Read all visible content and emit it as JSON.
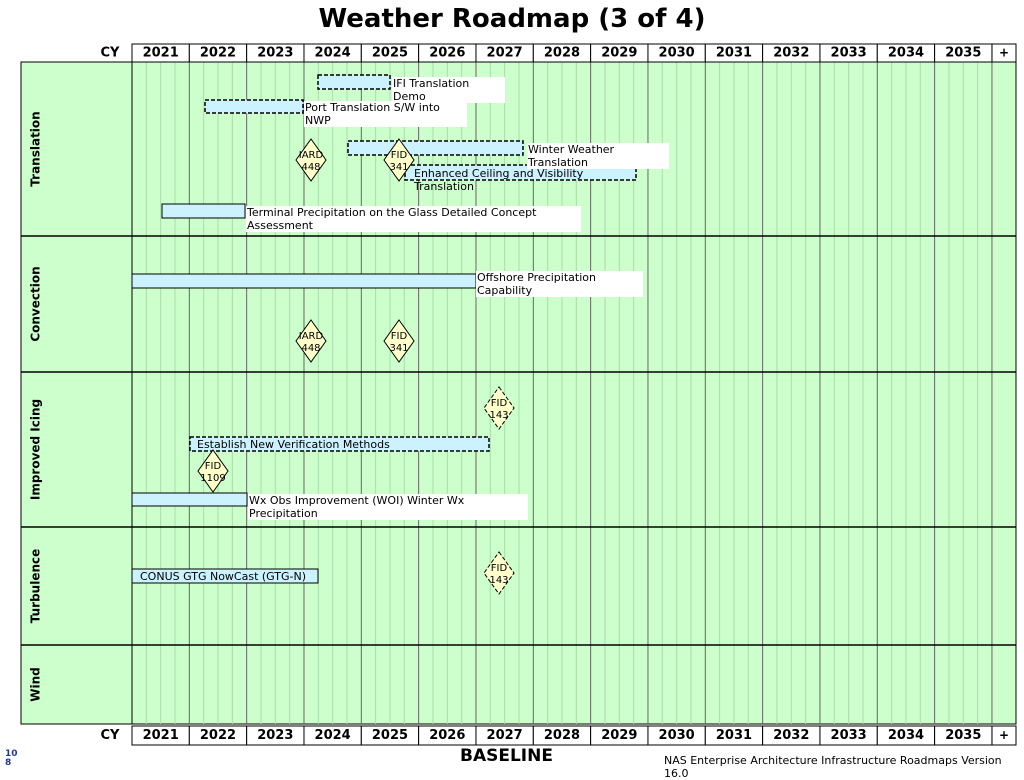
{
  "title": "Weather Roadmap (3 of 4)",
  "header": {
    "label": "CY",
    "years": [
      "2021",
      "2022",
      "2023",
      "2024",
      "2025",
      "2026",
      "2027",
      "2028",
      "2029",
      "2030",
      "2031",
      "2032",
      "2033",
      "2034",
      "2035"
    ],
    "more": "+"
  },
  "lanes": [
    {
      "name": "Translation"
    },
    {
      "name": "Convection"
    },
    {
      "name": "Improved Icing"
    },
    {
      "name": "Turbulence"
    },
    {
      "name": "Wind"
    }
  ],
  "activities": [
    {
      "label": "IFI Translation Demo"
    },
    {
      "label": "Port Translation S/W into NWP"
    },
    {
      "label": "Winter Weather Translation"
    },
    {
      "label": "Enhanced Ceiling and Visibility Translation"
    },
    {
      "label": "Terminal Precipitation on the Glass Detailed Concept Assessment"
    },
    {
      "label": "Offshore Precipitation Capability"
    },
    {
      "label": "Establish New Verification Methods"
    },
    {
      "label": "Wx Obs Improvement (WOI) Winter Wx Precipitation"
    },
    {
      "label": "CONUS GTG NowCast (GTG-N)"
    }
  ],
  "milestones": [
    {
      "lines": [
        "IARD",
        "448"
      ]
    },
    {
      "lines": [
        "FID",
        "341"
      ]
    },
    {
      "lines": [
        "IARD",
        "448"
      ]
    },
    {
      "lines": [
        "FID",
        "341"
      ]
    },
    {
      "lines": [
        "FID",
        "143"
      ]
    },
    {
      "lines": [
        "FID",
        "1109"
      ]
    },
    {
      "lines": [
        "FID",
        "143"
      ]
    }
  ],
  "footer": {
    "page": "108",
    "baseline": "BASELINE",
    "version": "NAS Enterprise Architecture Infrastructure Roadmaps Version 16.0"
  }
}
